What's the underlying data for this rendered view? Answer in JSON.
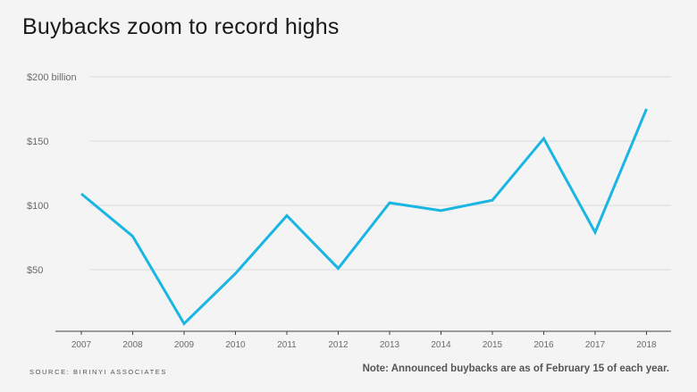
{
  "chart_data": {
    "type": "line",
    "title": "Buybacks zoom to record highs",
    "categories": [
      "2007",
      "2008",
      "2009",
      "2010",
      "2011",
      "2012",
      "2013",
      "2014",
      "2015",
      "2016",
      "2017",
      "2018"
    ],
    "series": [
      {
        "values": [
          109,
          76,
          8,
          47,
          92,
          51,
          102,
          96,
          104,
          152,
          79,
          175
        ]
      }
    ],
    "y_ticks": [
      {
        "value": 50,
        "label": "$50"
      },
      {
        "value": 100,
        "label": "$100"
      },
      {
        "value": 150,
        "label": "$150"
      },
      {
        "value": 200,
        "label": "$200 billion"
      }
    ],
    "ylim": [
      0,
      200
    ],
    "grid": true,
    "line_color": "#19b5e3",
    "source": "SOURCE: BIRINYI ASSOCIATES",
    "note": "Note: Announced buybacks are as of February 15 of each year."
  }
}
